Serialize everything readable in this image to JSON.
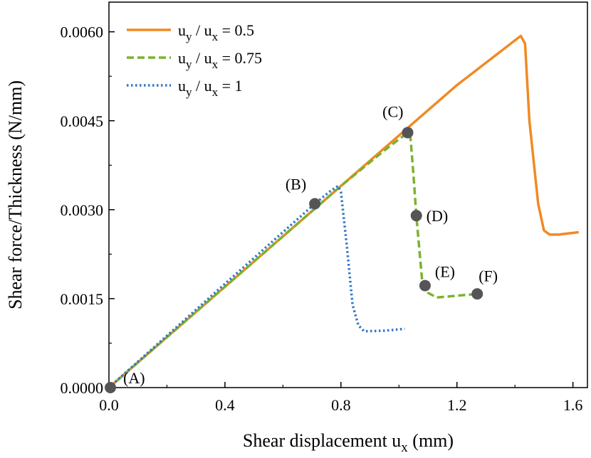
{
  "chart_data": {
    "type": "line",
    "xlabel": "Shear displacement u",
    "xlabel_sub": "x",
    "xlabel_unit": " (mm)",
    "ylabel": "Shear force/Thickness (N/mm)",
    "xlim": [
      0,
      1.65
    ],
    "ylim": [
      0,
      0.0065
    ],
    "xticks": [
      0,
      0.4,
      0.8,
      1.2,
      1.6
    ],
    "xtick_labels": [
      "0.0",
      "0.4",
      "0.8",
      "1.2",
      "1.6"
    ],
    "yticks": [
      0,
      0.0015,
      0.003,
      0.0045,
      0.006
    ],
    "ytick_labels": [
      "0.0000",
      "0.0015",
      "0.0030",
      "0.0045",
      "0.0060"
    ],
    "grid": false,
    "legend_position": "top-left",
    "series": [
      {
        "name": "0.5",
        "legend_prefix": "u",
        "legend_sub1": "y",
        "legend_mid": " / u",
        "legend_sub2": "x",
        "legend_suffix": " = 0.5",
        "style": "solid",
        "color": "#f08a24",
        "x": [
          0,
          0.4,
          0.8,
          1.2,
          1.42,
          1.435,
          1.45,
          1.48,
          1.5,
          1.52,
          1.55,
          1.62
        ],
        "y": [
          0,
          0.0017,
          0.0034,
          0.0051,
          0.00593,
          0.0058,
          0.0045,
          0.0031,
          0.00265,
          0.00258,
          0.00258,
          0.00262
        ]
      },
      {
        "name": "0.75",
        "legend_prefix": "u",
        "legend_sub1": "y",
        "legend_mid": " / u",
        "legend_sub2": "x",
        "legend_suffix": " = 0.75",
        "style": "dashed",
        "color": "#7cb22f",
        "x": [
          0,
          0.4,
          0.8,
          0.95,
          1.03,
          1.04,
          1.05,
          1.06,
          1.08,
          1.1,
          1.13,
          1.2,
          1.27
        ],
        "y": [
          0,
          0.0017,
          0.0034,
          0.004,
          0.0043,
          0.0042,
          0.0036,
          0.0029,
          0.0018,
          0.0016,
          0.00152,
          0.00155,
          0.00158
        ]
      },
      {
        "name": "1",
        "legend_prefix": "u",
        "legend_sub1": "y",
        "legend_mid": " / u",
        "legend_sub2": "x",
        "legend_suffix": " = 1",
        "style": "dotted",
        "color": "#2f76c7",
        "x": [
          0,
          0.4,
          0.71,
          0.76,
          0.79,
          0.8,
          0.82,
          0.84,
          0.86,
          0.88,
          0.95,
          1.02
        ],
        "y": [
          0,
          0.00175,
          0.0031,
          0.0033,
          0.0034,
          0.0033,
          0.0024,
          0.0014,
          0.00105,
          0.00095,
          0.00096,
          0.00099
        ]
      }
    ],
    "points": [
      {
        "label": "(A)",
        "x": 0.005,
        "y": 0.0
      },
      {
        "label": "(B)",
        "x": 0.71,
        "y": 0.0031
      },
      {
        "label": "(C)",
        "x": 1.03,
        "y": 0.0043
      },
      {
        "label": "(D)",
        "x": 1.06,
        "y": 0.0029
      },
      {
        "label": "(E)",
        "x": 1.09,
        "y": 0.00172
      },
      {
        "label": "(F)",
        "x": 1.27,
        "y": 0.00158
      }
    ],
    "point_color": "#555555"
  }
}
